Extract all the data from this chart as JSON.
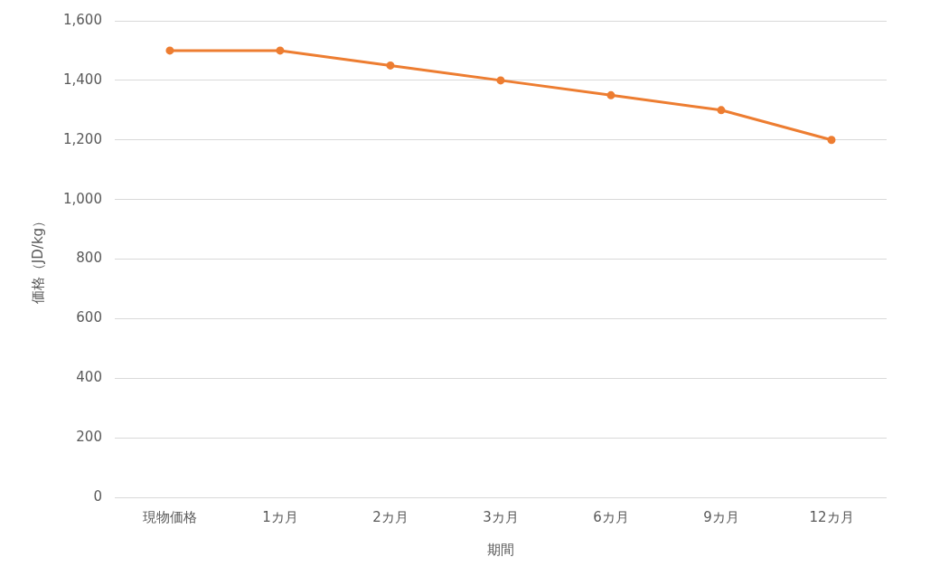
{
  "chart_data": {
    "type": "line",
    "xlabel": "期間",
    "ylabel": "価格（JD/kg）",
    "categories": [
      "現物価格",
      "1カ月",
      "2カ月",
      "3カ月",
      "6カ月",
      "9カ月",
      "12カ月"
    ],
    "series": [
      {
        "color": "#ed7d31",
        "values": [
          1500,
          1500,
          1450,
          1400,
          1350,
          1300,
          1200
        ]
      }
    ],
    "ylim": [
      0,
      1600
    ],
    "yticks": [
      0,
      200,
      400,
      600,
      800,
      {
        "value": 1000,
        "label": "1,000"
      },
      {
        "value": 1200,
        "label": "1,200"
      },
      {
        "value": 1400,
        "label": "1,400"
      },
      {
        "value": 1600,
        "label": "1,600"
      }
    ],
    "grid": "y",
    "legend": false,
    "marker": "circle",
    "line_style": "solid"
  }
}
